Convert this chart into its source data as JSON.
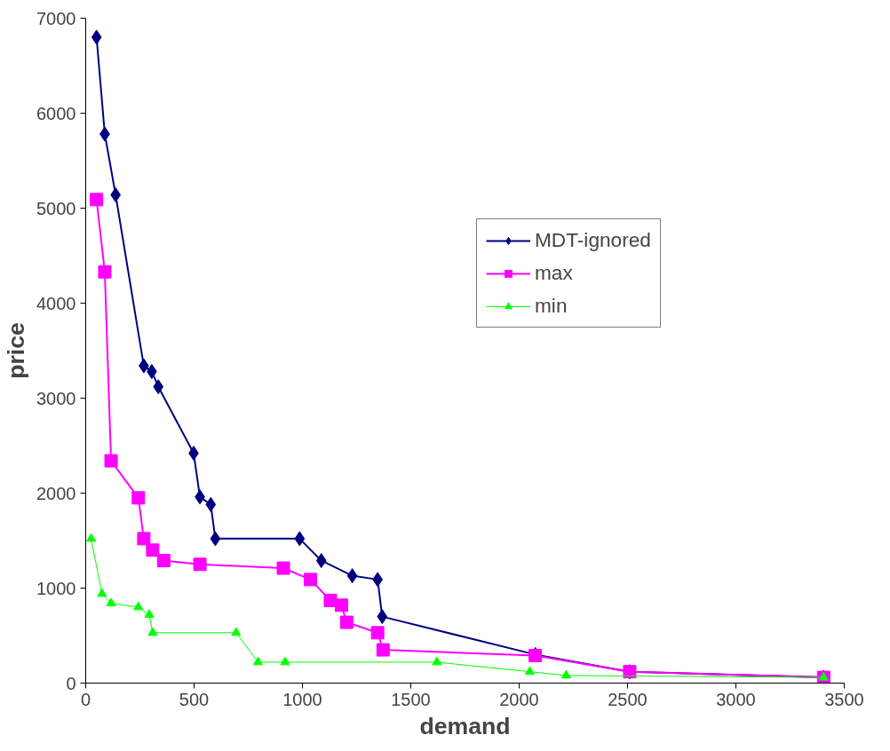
{
  "chart_data": {
    "type": "line",
    "xlabel": "demand",
    "ylabel": "price",
    "xlim": [
      0,
      3500
    ],
    "ylim": [
      0,
      7000
    ],
    "xticks": [
      0,
      500,
      1000,
      1500,
      2000,
      2500,
      3000,
      3500
    ],
    "yticks": [
      0,
      1000,
      2000,
      3000,
      4000,
      5000,
      6000,
      7000
    ],
    "grid": false,
    "legend": "top right",
    "series": [
      {
        "name": "MDT-ignored",
        "color": "#000080",
        "marker": "diamond",
        "x": [
          50,
          88,
          138,
          268,
          305,
          335,
          498,
          527,
          577,
          598,
          987,
          1087,
          1230,
          1347,
          1368,
          2075,
          2510,
          3405
        ],
        "values": [
          6800,
          5780,
          5140,
          3340,
          3280,
          3120,
          2420,
          1960,
          1880,
          1520,
          1520,
          1290,
          1130,
          1090,
          700,
          300,
          120,
          60
        ]
      },
      {
        "name": "max",
        "color": "#ff00ff",
        "marker": "square",
        "x": [
          50,
          88,
          117,
          243,
          268,
          309,
          360,
          527,
          912,
          1037,
          1129,
          1180,
          1204,
          1347,
          1372,
          2074,
          2510,
          3405
        ],
        "values": [
          5090,
          4330,
          2340,
          1950,
          1520,
          1400,
          1290,
          1250,
          1210,
          1090,
          870,
          820,
          640,
          530,
          350,
          290,
          120,
          60
        ]
      },
      {
        "name": "min",
        "color": "#00ff00",
        "marker": "triangle",
        "x": [
          25,
          75,
          117,
          243,
          293,
          309,
          694,
          795,
          920,
          1620,
          2049,
          2217,
          3405
        ],
        "values": [
          1520,
          940,
          840,
          800,
          720,
          530,
          530,
          220,
          220,
          220,
          120,
          80,
          60
        ]
      }
    ]
  }
}
